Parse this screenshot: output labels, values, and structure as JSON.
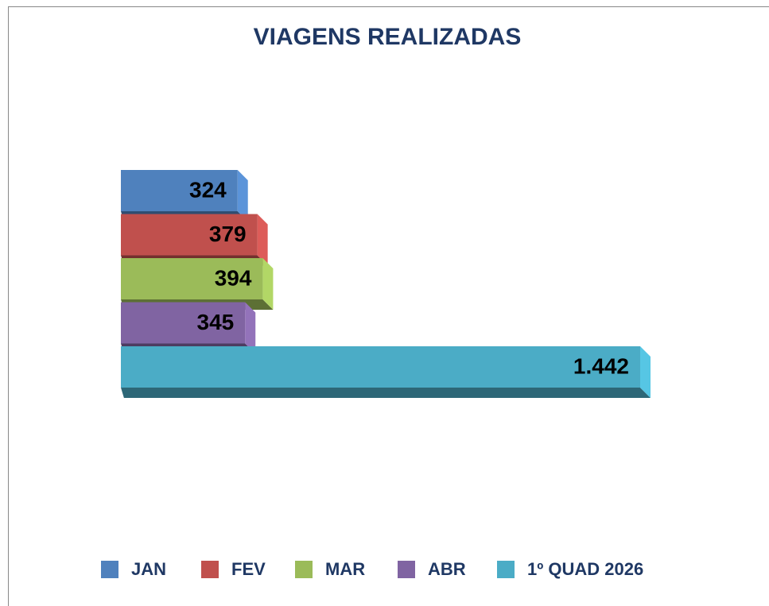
{
  "chart_data": {
    "type": "bar3d_horizontal",
    "title": "VIAGENS REALIZADAS",
    "series": [
      {
        "name": "JAN",
        "color": "#4f81bd",
        "values": [
          324
        ]
      },
      {
        "name": "FEV",
        "color": "#c0504d",
        "values": [
          379
        ]
      },
      {
        "name": "MAR",
        "color": "#9bbb59",
        "values": [
          394
        ]
      },
      {
        "name": "ABR",
        "color": "#8064a2",
        "values": [
          345
        ]
      },
      {
        "name": "1º QUAD 2026",
        "color": "#4bacc6",
        "values": [
          1442
        ],
        "value_labels": [
          "1.442"
        ]
      }
    ],
    "legend": "bottom"
  }
}
